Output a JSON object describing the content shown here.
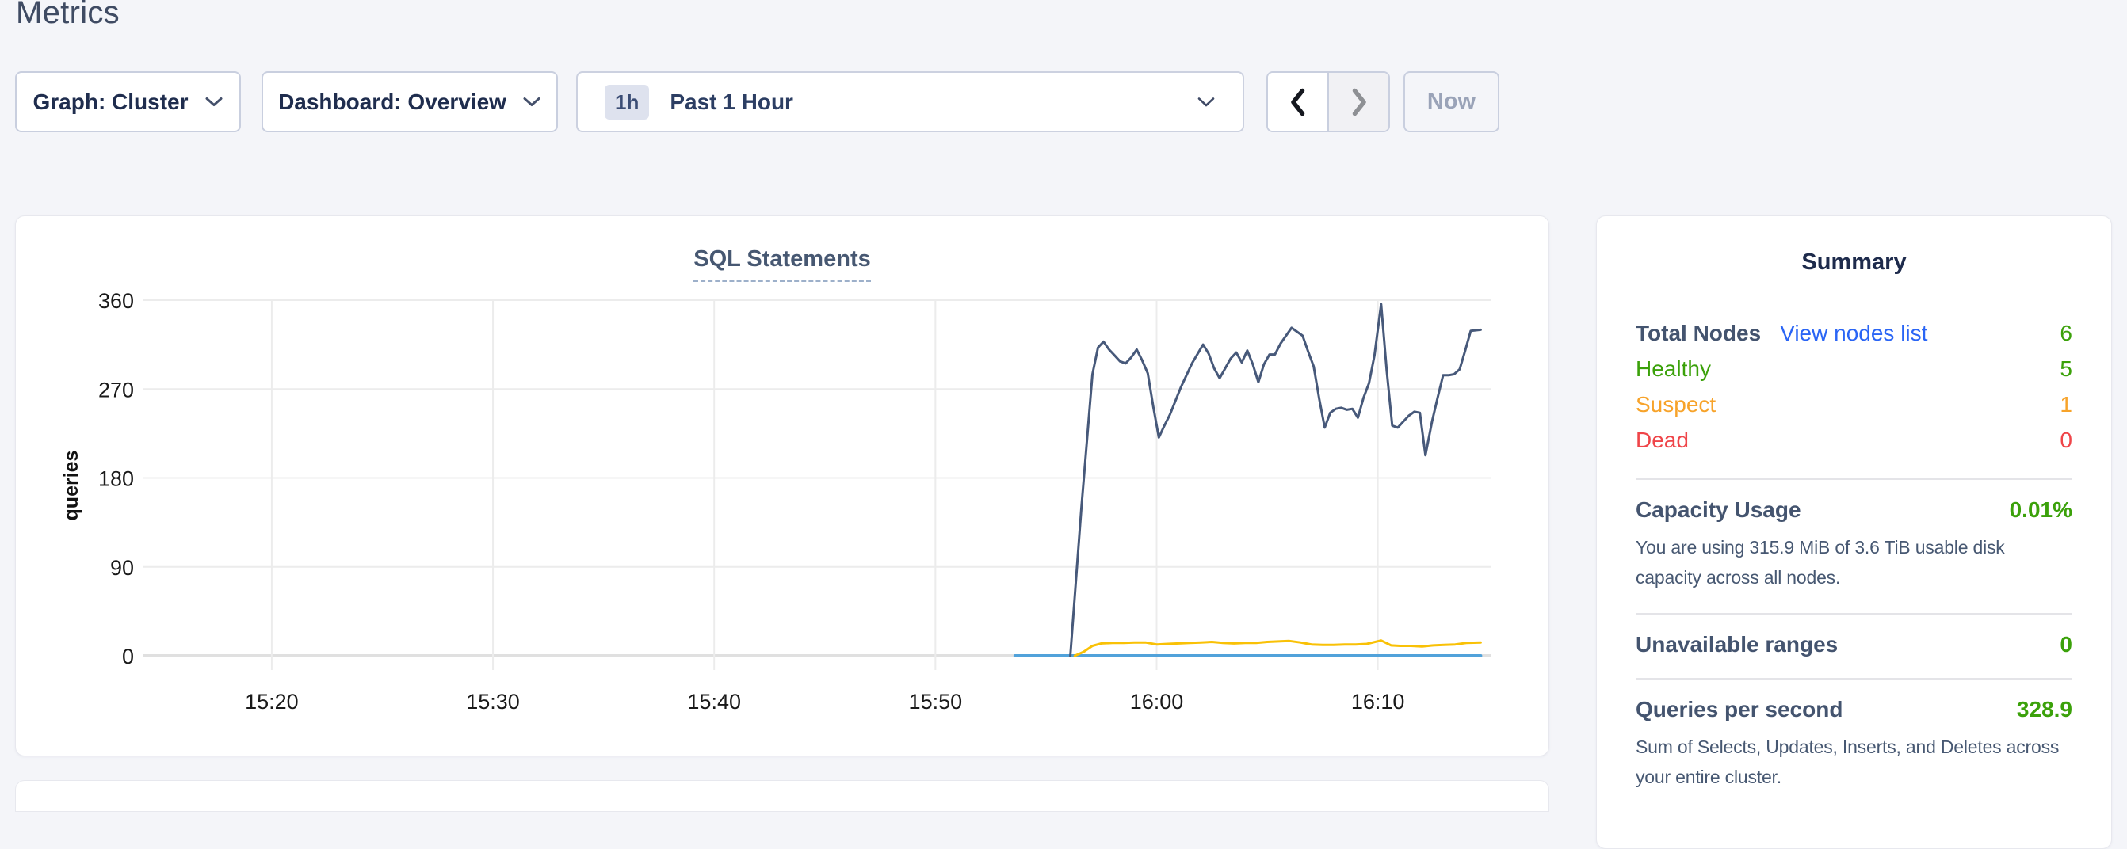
{
  "page": {
    "title": "Metrics"
  },
  "colors": {
    "status-green": "#3ba10a",
    "status-orange": "#f7a32a",
    "status-red": "#ef4549",
    "link-blue": "#2a65f5"
  },
  "icons": {
    "dropdown": "chevron-down",
    "prev": "chevron-left",
    "next": "chevron-right"
  },
  "toolbar": {
    "graph_dropdown": {
      "label": "Graph: Cluster"
    },
    "dashboard_dropdown": {
      "label": "Dashboard: Overview"
    },
    "time_selector": {
      "badge": "1h",
      "label": "Past 1 Hour"
    },
    "now_label": "Now"
  },
  "chart_data": {
    "type": "line",
    "title": "SQL Statements",
    "ylabel": "queries",
    "ylim": [
      0,
      360
    ],
    "yticks": [
      0,
      90,
      180,
      270,
      360
    ],
    "xticks": [
      {
        "label": "15:20",
        "minutes": 20
      },
      {
        "label": "15:30",
        "minutes": 30
      },
      {
        "label": "15:40",
        "minutes": 40
      },
      {
        "label": "15:50",
        "minutes": 50
      },
      {
        "label": "16:00",
        "minutes": 60
      },
      {
        "label": "16:10",
        "minutes": 70
      }
    ],
    "x_domain_minutes": [
      14.2,
      75.1
    ],
    "x_unit": "minutes after 15:00",
    "grid": true,
    "legend": "none",
    "series": [
      {
        "name": "series-dark-navy",
        "color": "#47597a",
        "width": 3,
        "points": [
          [
            56.1,
            0
          ],
          [
            56.6,
            150
          ],
          [
            57.1,
            285
          ],
          [
            57.35,
            312
          ],
          [
            57.6,
            318
          ],
          [
            57.85,
            310
          ],
          [
            58.1,
            304
          ],
          [
            58.35,
            298
          ],
          [
            58.6,
            296
          ],
          [
            58.85,
            302
          ],
          [
            59.1,
            310
          ],
          [
            59.35,
            299
          ],
          [
            59.6,
            286
          ],
          [
            59.85,
            252
          ],
          [
            60.1,
            221
          ],
          [
            60.35,
            233
          ],
          [
            60.6,
            244
          ],
          [
            61.1,
            272
          ],
          [
            61.6,
            296
          ],
          [
            62.1,
            315
          ],
          [
            62.35,
            306
          ],
          [
            62.6,
            291
          ],
          [
            62.85,
            281
          ],
          [
            63.1,
            291
          ],
          [
            63.35,
            301
          ],
          [
            63.6,
            307
          ],
          [
            63.85,
            297
          ],
          [
            64.1,
            309
          ],
          [
            64.35,
            295
          ],
          [
            64.6,
            277
          ],
          [
            64.85,
            295
          ],
          [
            65.1,
            305
          ],
          [
            65.35,
            305
          ],
          [
            65.6,
            316
          ],
          [
            65.85,
            324
          ],
          [
            66.1,
            332
          ],
          [
            66.35,
            328
          ],
          [
            66.6,
            324
          ],
          [
            66.85,
            308
          ],
          [
            67.1,
            293
          ],
          [
            67.35,
            260
          ],
          [
            67.6,
            231
          ],
          [
            67.85,
            246
          ],
          [
            68.1,
            250
          ],
          [
            68.35,
            251
          ],
          [
            68.6,
            249
          ],
          [
            68.85,
            250
          ],
          [
            69.1,
            241
          ],
          [
            69.35,
            261
          ],
          [
            69.6,
            276
          ],
          [
            69.85,
            304
          ],
          [
            70.15,
            356
          ],
          [
            70.4,
            289
          ],
          [
            70.65,
            233
          ],
          [
            70.9,
            231
          ],
          [
            71.15,
            237
          ],
          [
            71.4,
            243
          ],
          [
            71.65,
            247
          ],
          [
            71.9,
            246
          ],
          [
            72.15,
            203
          ],
          [
            72.45,
            237
          ],
          [
            72.7,
            261
          ],
          [
            72.95,
            284
          ],
          [
            73.2,
            284
          ],
          [
            73.45,
            285
          ],
          [
            73.7,
            290
          ],
          [
            73.95,
            309
          ],
          [
            74.2,
            329
          ],
          [
            74.65,
            330
          ]
        ]
      },
      {
        "name": "series-yellow",
        "color": "#f9c106",
        "width": 3,
        "points": [
          [
            56.3,
            0
          ],
          [
            56.7,
            4
          ],
          [
            57.1,
            10
          ],
          [
            57.5,
            12.5
          ],
          [
            58,
            13
          ],
          [
            58.5,
            13
          ],
          [
            59,
            13.5
          ],
          [
            59.5,
            13.5
          ],
          [
            60,
            11.5
          ],
          [
            60.5,
            12
          ],
          [
            61,
            12.5
          ],
          [
            61.5,
            13
          ],
          [
            62,
            13.5
          ],
          [
            62.5,
            14
          ],
          [
            63,
            13
          ],
          [
            63.5,
            12.5
          ],
          [
            64,
            13
          ],
          [
            64.5,
            13
          ],
          [
            65,
            14
          ],
          [
            65.5,
            14.5
          ],
          [
            66,
            15
          ],
          [
            66.5,
            13.5
          ],
          [
            67,
            11.5
          ],
          [
            67.5,
            11
          ],
          [
            68,
            11
          ],
          [
            68.5,
            11.5
          ],
          [
            69,
            11.5
          ],
          [
            69.5,
            12
          ],
          [
            70.15,
            15.5
          ],
          [
            70.6,
            10.5
          ],
          [
            71,
            10
          ],
          [
            71.5,
            10
          ],
          [
            72,
            9.5
          ],
          [
            72.5,
            10.5
          ],
          [
            73,
            11
          ],
          [
            73.5,
            11.5
          ],
          [
            74,
            13
          ],
          [
            74.65,
            13.5
          ]
        ]
      },
      {
        "name": "series-light-blue",
        "color": "#51a2da",
        "width": 4,
        "points": [
          [
            53.6,
            0
          ],
          [
            74.65,
            0
          ]
        ]
      }
    ]
  },
  "summary": {
    "title": "Summary",
    "node_rows": [
      {
        "name": "total-nodes",
        "label": "Total Nodes",
        "link": "View nodes list",
        "value": "6",
        "label_style": "default",
        "value_style": "green"
      },
      {
        "name": "healthy",
        "label": "Healthy",
        "value": "5",
        "label_style": "green",
        "value_style": "green"
      },
      {
        "name": "suspect",
        "label": "Suspect",
        "value": "1",
        "label_style": "orange",
        "value_style": "orange"
      },
      {
        "name": "dead",
        "label": "Dead",
        "value": "0",
        "label_style": "red",
        "value_style": "red"
      }
    ],
    "sections": [
      {
        "name": "capacity-usage",
        "label": "Capacity Usage",
        "value": "0.01%",
        "caption": "You are using 315.9 MiB of 3.6 TiB usable disk capacity across all nodes."
      },
      {
        "name": "unavailable-ranges",
        "label": "Unavailable ranges",
        "value": "0"
      },
      {
        "name": "queries-per-second",
        "label": "Queries per second",
        "value": "328.9",
        "caption": "Sum of Selects, Updates, Inserts, and Deletes across your entire cluster."
      }
    ]
  }
}
